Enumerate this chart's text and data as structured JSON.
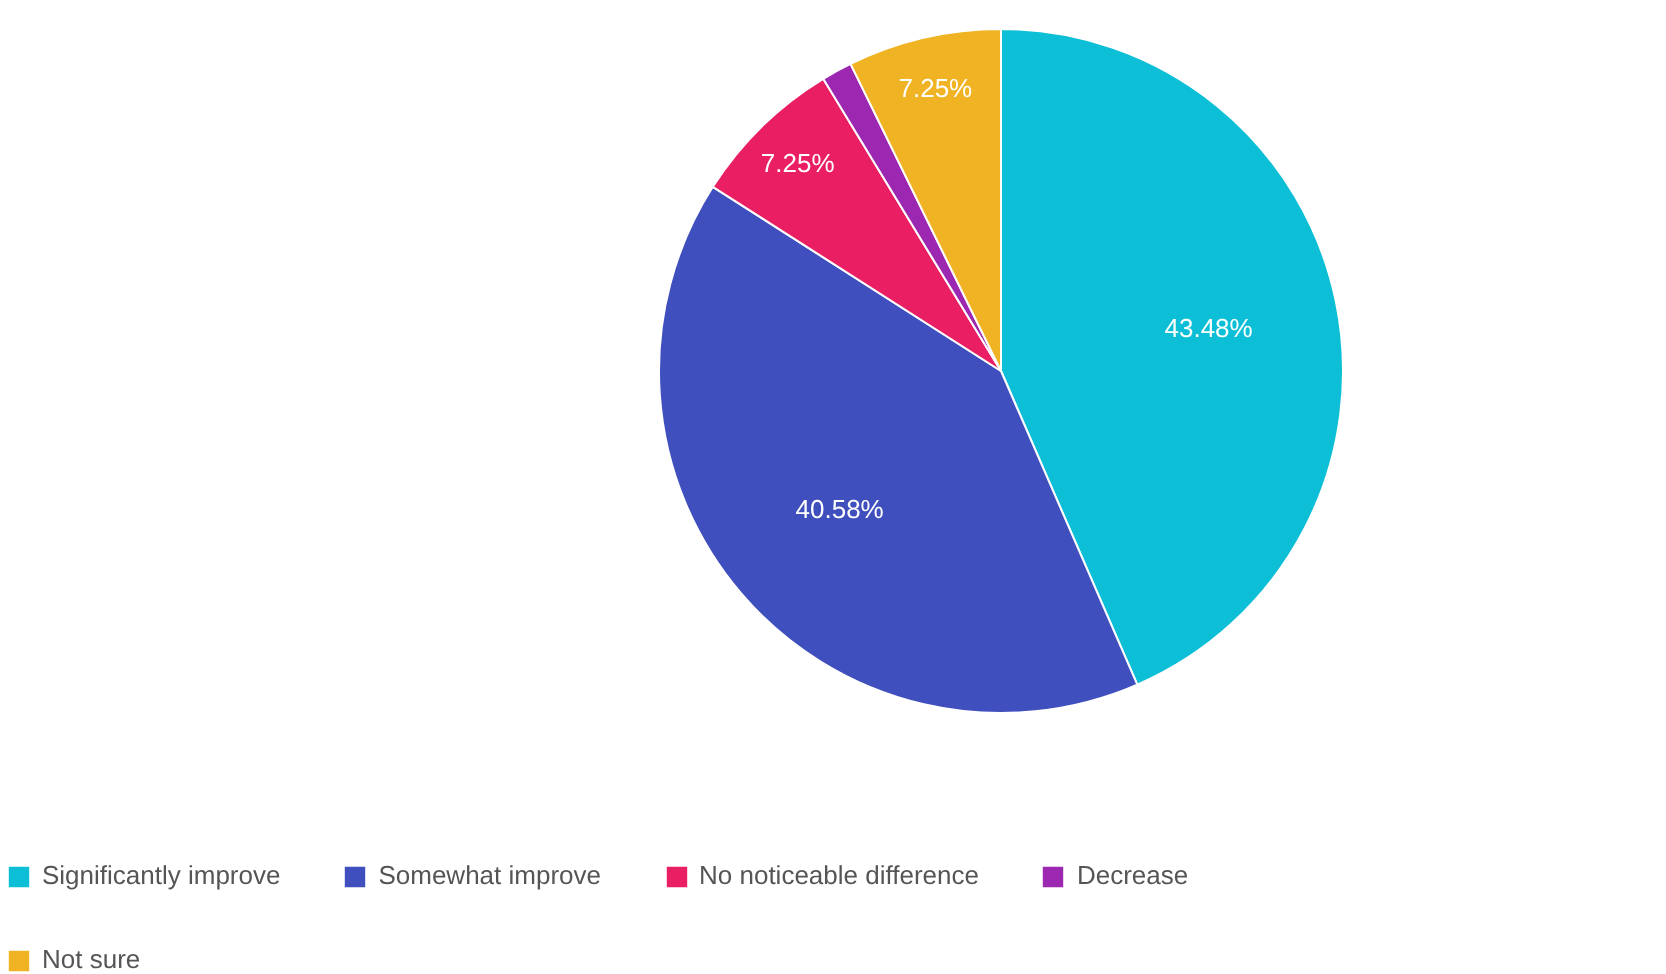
{
  "chart_data": {
    "type": "pie",
    "categories": [
      "Significantly improve",
      "Somewhat improve",
      "No noticeable difference",
      "Decrease",
      "Not sure"
    ],
    "values": [
      43.48,
      40.58,
      7.25,
      1.45,
      7.25
    ],
    "colors": [
      "#0dbfd6",
      "#3f4fbd",
      "#e91e63",
      "#9c27b0",
      "#f0b323"
    ],
    "value_labels": [
      "43.48%",
      "40.58%",
      "7.25%",
      null,
      "7.25%"
    ],
    "legend": "bottom"
  }
}
